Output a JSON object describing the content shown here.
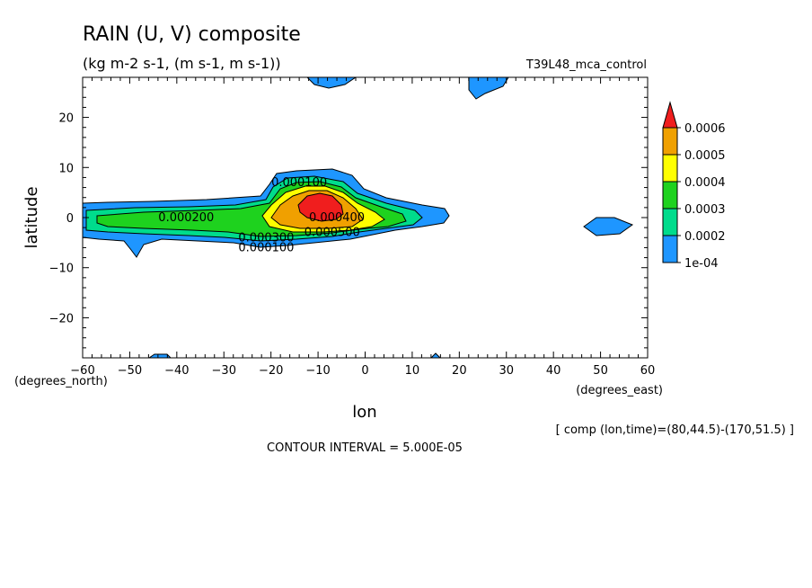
{
  "header": {
    "title": "RAIN (U, V) composite",
    "units": "(kg m-2 s-1, (m s-1, m s-1))",
    "experiment": "T39L48_mca_control"
  },
  "footer": {
    "composite_note": "[ comp (lon,time)=(80,44.5)-(170,51.5) ]",
    "contour_interval": "CONTOUR INTERVAL = 5.000E-05"
  },
  "chart_data": {
    "type": "filled-contour",
    "xlabel": "lon",
    "ylabel": "latitude",
    "x_unit_label": "(degrees_east)",
    "y_unit_label": "(degrees_north)",
    "xlim": [
      -60,
      60
    ],
    "ylim": [
      -28,
      28
    ],
    "xticks": [
      -60,
      -50,
      -40,
      -30,
      -20,
      -10,
      0,
      10,
      20,
      30,
      40,
      50,
      60
    ],
    "yticks": [
      -20,
      -10,
      0,
      10,
      20
    ],
    "xtick_labels": [
      "−60",
      "−50",
      "−40",
      "−30",
      "−20",
      "−10",
      "0",
      "10",
      "20",
      "30",
      "40",
      "50",
      "60"
    ],
    "ytick_labels": [
      "−20",
      "−10",
      "0",
      "10",
      "20"
    ],
    "colorbar": {
      "levels": [
        0.0001,
        0.0002,
        0.0003,
        0.0004,
        0.0005,
        0.0006
      ],
      "labels": [
        "1e-04",
        "0.0002",
        "0.0003",
        "0.0004",
        "0.0005",
        "0.0006"
      ],
      "colors": [
        "#1e96ff",
        "#00dc8c",
        "#1ed21e",
        "#ffff00",
        "#f0a000",
        "#f01e1e"
      ]
    },
    "contour_labels": [
      {
        "text": "0.000200",
        "lon": -38,
        "lat": 0
      },
      {
        "text": "0.000100",
        "lon": -21,
        "lat": -6
      },
      {
        "text": "0.000300",
        "lon": -21,
        "lat": -4
      },
      {
        "text": "0.000500",
        "lon": -7,
        "lat": -3
      },
      {
        "text": "0.000400",
        "lon": -6,
        "lat": 0
      },
      {
        "text": "0.000100",
        "lon": -14,
        "lat": 7
      }
    ]
  }
}
